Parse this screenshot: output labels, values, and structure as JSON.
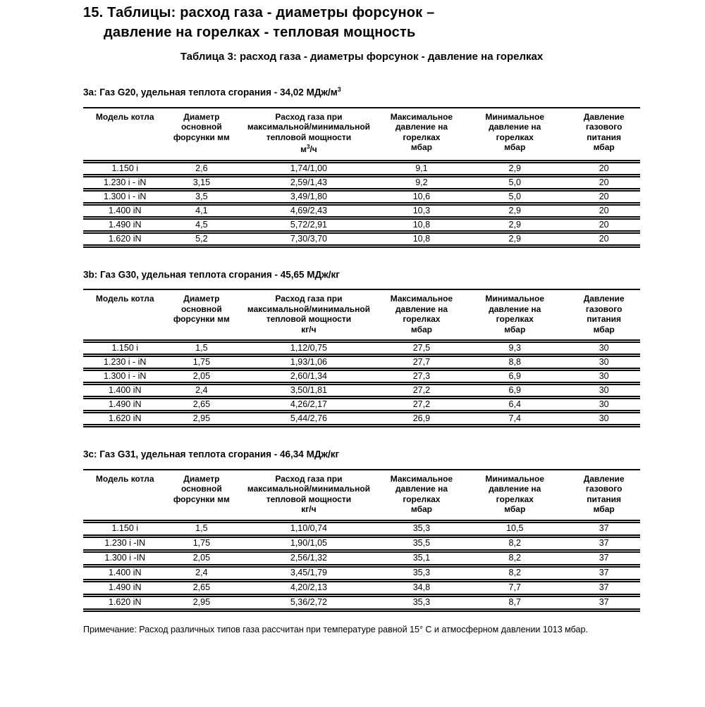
{
  "page": {
    "title_line1": "15. Таблицы: расход газа - диаметры форсунок –",
    "title_line2": "давление на горелках - тепловая мощность",
    "subtitle": "Таблица 3: расход газа - диаметры форсунок - давление на горелках",
    "note": "Примечание: Расход различных типов газа рассчитан при температуре равной 15° С и атмосферном давлении 1013 мбар."
  },
  "column_headers": [
    [
      "Модель котла"
    ],
    [
      "Диаметр",
      "основной",
      "форсунки мм"
    ],
    [
      "Расход газа при",
      "максимальной/минимальной",
      "тепловой мощности"
    ],
    [
      "Максимальное",
      "давление на",
      "горелках",
      "мбар"
    ],
    [
      "Минимальное",
      "давление на",
      "горелках",
      "мбар"
    ],
    [
      "Давление",
      "газового",
      "питания",
      "мбар"
    ]
  ],
  "tables": [
    {
      "id": "3a",
      "caption_main": "3а: Газ G20, удельная теплота сгорания - 34,02 МДж/м",
      "caption_sup": "3",
      "unit_main": "м",
      "unit_sup": "3",
      "unit_rest": "/ч",
      "rows": [
        [
          "1.150 i",
          "2,6",
          "1,74/1,00",
          "9,1",
          "2,9",
          "20"
        ],
        [
          "1.230 i - iN",
          "3,15",
          "2,59/1,43",
          "9,2",
          "5,0",
          "20"
        ],
        [
          "1.300 i - iN",
          "3,5",
          "3,49/1,80",
          "10,6",
          "5,0",
          "20"
        ],
        [
          "1.400 iN",
          "4,1",
          "4,69/2,43",
          "10,3",
          "2,9",
          "20"
        ],
        [
          "1.490 iN",
          "4,5",
          "5,72/2,91",
          "10,8",
          "2,9",
          "20"
        ],
        [
          "1.620 iN",
          "5,2",
          "7,30/3,70",
          "10,8",
          "2,9",
          "20"
        ]
      ]
    },
    {
      "id": "3b",
      "caption_main": "3b: Газ G30, удельная теплота сгорания - 45,65 МДж/кг",
      "caption_sup": "",
      "unit_main": "кг",
      "unit_sup": "",
      "unit_rest": "/ч",
      "rows": [
        [
          "1.150 i",
          "1,5",
          "1,12/0,75",
          "27,5",
          "9,3",
          "30"
        ],
        [
          "1.230 i - iN",
          "1,75",
          "1,93/1,06",
          "27,7",
          "8,8",
          "30"
        ],
        [
          "1.300 i - iN",
          "2,05",
          "2,60/1,34",
          "27,3",
          "6,9",
          "30"
        ],
        [
          "1.400 iN",
          "2,4",
          "3,50/1,81",
          "27,2",
          "6,9",
          "30"
        ],
        [
          "1.490 iN",
          "2,65",
          "4,26/2,17",
          "27,2",
          "6,4",
          "30"
        ],
        [
          "1.620 iN",
          "2,95",
          "5,44/2,76",
          "26,9",
          "7,4",
          "30"
        ]
      ]
    },
    {
      "id": "3c",
      "caption_main": "3c: Газ G31, удельная теплота сгорания - 46,34 МДж/кг",
      "caption_sup": "",
      "unit_main": "кг",
      "unit_sup": "",
      "unit_rest": "/ч",
      "rows": [
        [
          "1.150 i",
          "1,5",
          "1,10/0,74",
          "35,3",
          "10,5",
          "37"
        ],
        [
          "1.230 i -IN",
          "1,75",
          "1,90/1,05",
          "35,5",
          "8,2",
          "37"
        ],
        [
          "1.300 i -IN",
          "2,05",
          "2,56/1,32",
          "35,1",
          "8,2",
          "37"
        ],
        [
          "1.400 iN",
          "2,4",
          "3,45/1,79",
          "35,3",
          "8,2",
          "37"
        ],
        [
          "1.490 iN",
          "2,65",
          "4,20/2,13",
          "34,8",
          "7,7",
          "37"
        ],
        [
          "1.620 iN",
          "2,95",
          "5,36/2,72",
          "35,3",
          "8,7",
          "37"
        ]
      ]
    }
  ]
}
